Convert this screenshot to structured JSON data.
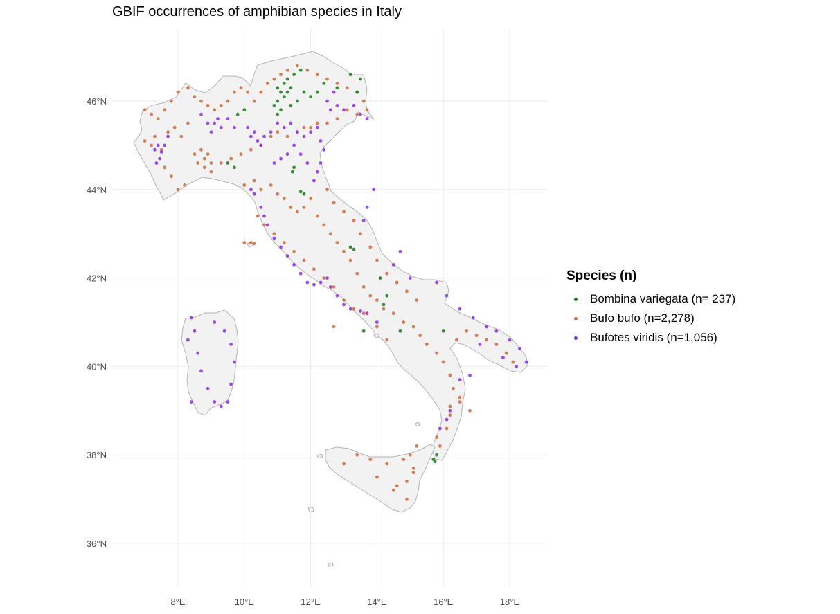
{
  "chart_data": {
    "type": "scatter",
    "title": "GBIF occurrences of amphibian species in Italy",
    "xlabel": "",
    "ylabel": "",
    "xlim": [
      6.0,
      19.1
    ],
    "ylim": [
      35.0,
      47.6
    ],
    "x_ticks": [
      {
        "value": 8,
        "label": "8°E"
      },
      {
        "value": 10,
        "label": "10°E"
      },
      {
        "value": 12,
        "label": "12°E"
      },
      {
        "value": 14,
        "label": "14°E"
      },
      {
        "value": 16,
        "label": "16°E"
      },
      {
        "value": 18,
        "label": "18°E"
      }
    ],
    "y_ticks": [
      {
        "value": 36,
        "label": "36°N"
      },
      {
        "value": 38,
        "label": "38°N"
      },
      {
        "value": 40,
        "label": "40°N"
      },
      {
        "value": 42,
        "label": "42°N"
      },
      {
        "value": 44,
        "label": "44°N"
      },
      {
        "value": 46,
        "label": "46°N"
      }
    ],
    "legend_title": "Species (n)",
    "legend_position": "right",
    "series": [
      {
        "name": "Bombina variegata (n=  237)",
        "color": "#1a7a1a",
        "points": [
          [
            10.9,
            45.9
          ],
          [
            11.0,
            46.0
          ],
          [
            11.1,
            45.8
          ],
          [
            11.2,
            46.1
          ],
          [
            11.3,
            46.2
          ],
          [
            11.0,
            46.3
          ],
          [
            11.2,
            46.4
          ],
          [
            11.4,
            46.3
          ],
          [
            11.3,
            46.5
          ],
          [
            11.5,
            46.6
          ],
          [
            11.7,
            46.7
          ],
          [
            11.1,
            46.2
          ],
          [
            11.6,
            46.0
          ],
          [
            11.8,
            46.2
          ],
          [
            12.0,
            46.1
          ],
          [
            12.2,
            46.2
          ],
          [
            11.4,
            45.9
          ],
          [
            11.0,
            45.7
          ],
          [
            11.5,
            44.5
          ],
          [
            11.45,
            44.4
          ],
          [
            11.8,
            43.9
          ],
          [
            11.7,
            43.95
          ],
          [
            12.4,
            46.4
          ],
          [
            12.8,
            46.3
          ],
          [
            13.5,
            46.5
          ],
          [
            13.2,
            46.6
          ],
          [
            13.4,
            46.2
          ],
          [
            9.8,
            45.7
          ],
          [
            10.0,
            45.8
          ],
          [
            9.5,
            44.6
          ],
          [
            9.7,
            44.5
          ],
          [
            13.2,
            42.7
          ],
          [
            13.3,
            42.65
          ],
          [
            14.1,
            42.0
          ],
          [
            14.3,
            41.6
          ],
          [
            14.2,
            41.4
          ],
          [
            13.6,
            40.8
          ],
          [
            14.7,
            40.8
          ],
          [
            16.0,
            40.8
          ],
          [
            15.8,
            38.0
          ],
          [
            15.7,
            37.9
          ],
          [
            15.75,
            37.85
          ]
        ]
      },
      {
        "name": "Bufo bufo (n=2,278)",
        "color": "#cd6839",
        "points": [
          [
            7.0,
            45.8
          ],
          [
            7.2,
            45.7
          ],
          [
            7.4,
            45.6
          ],
          [
            7.6,
            45.8
          ],
          [
            7.8,
            46.0
          ],
          [
            8.0,
            46.2
          ],
          [
            8.3,
            46.3
          ],
          [
            8.5,
            46.1
          ],
          [
            8.7,
            46.0
          ],
          [
            8.9,
            45.9
          ],
          [
            9.1,
            45.8
          ],
          [
            9.3,
            45.9
          ],
          [
            9.5,
            46.0
          ],
          [
            9.7,
            46.2
          ],
          [
            9.9,
            46.3
          ],
          [
            10.1,
            46.2
          ],
          [
            10.3,
            46.0
          ],
          [
            10.5,
            46.2
          ],
          [
            10.7,
            46.4
          ],
          [
            10.9,
            46.5
          ],
          [
            11.1,
            46.6
          ],
          [
            11.3,
            46.7
          ],
          [
            11.6,
            46.8
          ],
          [
            11.9,
            46.7
          ],
          [
            12.2,
            46.6
          ],
          [
            12.5,
            46.5
          ],
          [
            12.8,
            46.4
          ],
          [
            13.1,
            46.3
          ],
          [
            13.4,
            46.2
          ],
          [
            13.6,
            46.0
          ],
          [
            13.7,
            45.8
          ],
          [
            13.4,
            45.7
          ],
          [
            13.1,
            45.8
          ],
          [
            12.8,
            45.6
          ],
          [
            12.5,
            45.5
          ],
          [
            12.2,
            45.5
          ],
          [
            12.0,
            45.4
          ],
          [
            11.8,
            45.4
          ],
          [
            11.6,
            45.3
          ],
          [
            11.3,
            45.2
          ],
          [
            11.0,
            45.3
          ],
          [
            10.8,
            45.2
          ],
          [
            10.5,
            45.0
          ],
          [
            10.2,
            44.9
          ],
          [
            9.9,
            44.8
          ],
          [
            9.6,
            44.7
          ],
          [
            9.3,
            44.6
          ],
          [
            9.0,
            44.6
          ],
          [
            8.8,
            44.7
          ],
          [
            8.6,
            44.6
          ],
          [
            8.8,
            44.5
          ],
          [
            9.0,
            44.4
          ],
          [
            8.9,
            44.8
          ],
          [
            8.7,
            44.9
          ],
          [
            8.5,
            44.8
          ],
          [
            7.5,
            44.9
          ],
          [
            7.2,
            45.0
          ],
          [
            7.0,
            45.1
          ],
          [
            7.3,
            45.2
          ],
          [
            7.7,
            45.3
          ],
          [
            7.9,
            45.4
          ],
          [
            8.1,
            45.2
          ],
          [
            8.3,
            45.5
          ],
          [
            7.6,
            44.5
          ],
          [
            7.8,
            44.3
          ],
          [
            8.0,
            44.0
          ],
          [
            8.2,
            44.1
          ],
          [
            10.0,
            44.1
          ],
          [
            10.3,
            44.2
          ],
          [
            10.5,
            44.0
          ],
          [
            10.8,
            44.1
          ],
          [
            11.0,
            43.9
          ],
          [
            11.2,
            43.8
          ],
          [
            11.4,
            43.6
          ],
          [
            11.6,
            43.5
          ],
          [
            11.8,
            43.6
          ],
          [
            12.0,
            43.8
          ],
          [
            12.2,
            43.4
          ],
          [
            12.4,
            43.2
          ],
          [
            12.6,
            43.0
          ],
          [
            12.8,
            42.8
          ],
          [
            13.0,
            42.6
          ],
          [
            13.2,
            42.4
          ],
          [
            13.4,
            42.1
          ],
          [
            13.6,
            41.8
          ],
          [
            13.8,
            41.6
          ],
          [
            14.0,
            41.5
          ],
          [
            14.2,
            41.3
          ],
          [
            14.5,
            41.2
          ],
          [
            14.8,
            41.0
          ],
          [
            15.1,
            40.9
          ],
          [
            15.3,
            40.7
          ],
          [
            15.5,
            40.5
          ],
          [
            15.8,
            40.3
          ],
          [
            16.0,
            40.1
          ],
          [
            16.2,
            39.8
          ],
          [
            16.3,
            39.5
          ],
          [
            16.5,
            39.2
          ],
          [
            16.2,
            38.9
          ],
          [
            16.1,
            38.6
          ],
          [
            15.9,
            38.2
          ],
          [
            15.8,
            38.4
          ],
          [
            16.4,
            40.6
          ],
          [
            16.7,
            40.8
          ],
          [
            17.0,
            40.7
          ],
          [
            17.3,
            40.6
          ],
          [
            17.6,
            40.5
          ],
          [
            17.9,
            40.3
          ],
          [
            18.1,
            40.1
          ],
          [
            10.4,
            43.4
          ],
          [
            10.6,
            43.2
          ],
          [
            10.9,
            43.0
          ],
          [
            11.2,
            42.8
          ],
          [
            11.5,
            42.6
          ],
          [
            11.8,
            42.4
          ],
          [
            12.1,
            42.2
          ],
          [
            12.4,
            42.0
          ],
          [
            12.7,
            41.8
          ],
          [
            13.0,
            41.5
          ],
          [
            13.3,
            41.3
          ],
          [
            13.6,
            41.2
          ],
          [
            14.0,
            40.9
          ],
          [
            14.3,
            40.6
          ],
          [
            12.5,
            44.0
          ],
          [
            12.7,
            43.7
          ],
          [
            13.0,
            43.5
          ],
          [
            13.3,
            43.3
          ],
          [
            13.5,
            43.0
          ],
          [
            13.8,
            42.7
          ],
          [
            14.0,
            42.4
          ],
          [
            14.3,
            42.1
          ],
          [
            14.6,
            41.9
          ],
          [
            14.9,
            41.7
          ],
          [
            15.2,
            41.5
          ],
          [
            10.0,
            42.8
          ],
          [
            10.2,
            42.8
          ],
          [
            10.3,
            42.78
          ],
          [
            12.7,
            40.9
          ],
          [
            15.2,
            38.2
          ],
          [
            15.0,
            38.0
          ],
          [
            14.8,
            37.9
          ],
          [
            14.3,
            37.8
          ],
          [
            13.8,
            37.9
          ],
          [
            13.4,
            38.0
          ],
          [
            13.0,
            37.8
          ],
          [
            14.0,
            37.5
          ],
          [
            14.5,
            37.2
          ],
          [
            14.9,
            37.4
          ],
          [
            15.1,
            37.6
          ],
          [
            14.9,
            37.0
          ],
          [
            14.6,
            37.3
          ],
          [
            15.1,
            37.7
          ],
          [
            16.5,
            39.3
          ],
          [
            16.2,
            39.1
          ],
          [
            16.8,
            39.0
          ]
        ]
      },
      {
        "name": "Bufotes viridis (n=1,056)",
        "color": "#8b2be2",
        "points": [
          [
            7.3,
            44.9
          ],
          [
            7.4,
            45.0
          ],
          [
            7.5,
            44.85
          ],
          [
            7.45,
            44.7
          ],
          [
            7.6,
            45.0
          ],
          [
            7.35,
            44.6
          ],
          [
            7.7,
            45.2
          ],
          [
            8.9,
            45.5
          ],
          [
            9.1,
            45.5
          ],
          [
            9.2,
            45.6
          ],
          [
            9.3,
            45.4
          ],
          [
            9.0,
            45.3
          ],
          [
            9.5,
            45.6
          ],
          [
            9.7,
            45.4
          ],
          [
            8.7,
            45.7
          ],
          [
            10.2,
            45.2
          ],
          [
            10.4,
            45.1
          ],
          [
            10.5,
            45.0
          ],
          [
            10.3,
            45.3
          ],
          [
            10.6,
            45.2
          ],
          [
            10.1,
            45.4
          ],
          [
            10.8,
            45.3
          ],
          [
            11.0,
            45.5
          ],
          [
            11.2,
            45.4
          ],
          [
            11.4,
            45.5
          ],
          [
            11.6,
            45.3
          ],
          [
            11.8,
            45.2
          ],
          [
            12.0,
            45.3
          ],
          [
            12.2,
            45.4
          ],
          [
            12.3,
            45.1
          ],
          [
            12.4,
            44.9
          ],
          [
            12.3,
            44.6
          ],
          [
            12.2,
            44.4
          ],
          [
            12.1,
            44.2
          ],
          [
            11.9,
            44.6
          ],
          [
            11.7,
            44.8
          ],
          [
            11.5,
            45.0
          ],
          [
            11.3,
            44.8
          ],
          [
            11.1,
            44.7
          ],
          [
            10.9,
            44.6
          ],
          [
            12.6,
            45.8
          ],
          [
            12.8,
            45.9
          ],
          [
            13.0,
            45.8
          ],
          [
            13.3,
            45.9
          ],
          [
            13.5,
            45.7
          ],
          [
            13.7,
            45.6
          ],
          [
            12.5,
            46.0
          ],
          [
            12.7,
            46.2
          ],
          [
            10.5,
            43.6
          ],
          [
            10.6,
            43.4
          ],
          [
            10.7,
            43.2
          ],
          [
            10.9,
            42.9
          ],
          [
            11.1,
            42.7
          ],
          [
            11.3,
            42.5
          ],
          [
            11.5,
            42.3
          ],
          [
            11.7,
            42.1
          ],
          [
            11.9,
            41.9
          ],
          [
            12.1,
            41.85
          ],
          [
            12.3,
            41.9
          ],
          [
            12.5,
            42.0
          ],
          [
            12.6,
            41.8
          ],
          [
            12.8,
            41.6
          ],
          [
            13.0,
            41.4
          ],
          [
            13.2,
            41.3
          ],
          [
            13.5,
            41.25
          ],
          [
            13.7,
            41.2
          ],
          [
            14.0,
            41.0
          ],
          [
            10.3,
            43.9
          ],
          [
            10.2,
            44.0
          ],
          [
            14.5,
            42.3
          ],
          [
            14.7,
            42.6
          ],
          [
            15.0,
            42.0
          ],
          [
            15.8,
            41.9
          ],
          [
            16.1,
            41.6
          ],
          [
            16.5,
            41.3
          ],
          [
            16.9,
            41.1
          ],
          [
            17.3,
            40.9
          ],
          [
            17.6,
            40.8
          ],
          [
            18.0,
            40.6
          ],
          [
            18.3,
            40.4
          ],
          [
            18.5,
            40.1
          ],
          [
            18.2,
            40.0
          ],
          [
            17.8,
            40.2
          ],
          [
            17.1,
            40.5
          ],
          [
            16.8,
            39.8
          ],
          [
            16.5,
            39.7
          ],
          [
            8.4,
            41.1
          ],
          [
            8.5,
            40.8
          ],
          [
            8.6,
            40.3
          ],
          [
            8.7,
            39.9
          ],
          [
            8.9,
            39.5
          ],
          [
            9.1,
            39.2
          ],
          [
            9.3,
            39.1
          ],
          [
            9.5,
            39.2
          ],
          [
            9.6,
            39.6
          ],
          [
            9.7,
            40.1
          ],
          [
            9.6,
            40.5
          ],
          [
            9.4,
            40.8
          ],
          [
            9.1,
            41.0
          ],
          [
            8.3,
            40.6
          ],
          [
            8.4,
            39.2
          ],
          [
            16.2,
            39.0
          ],
          [
            16.1,
            38.8
          ],
          [
            15.9,
            38.6
          ],
          [
            13.9,
            44.0
          ],
          [
            13.7,
            43.6
          ],
          [
            13.6,
            43.3
          ]
        ]
      }
    ]
  },
  "map": {
    "background_color": "#ffffff",
    "land_fill": "#f2f2f2",
    "land_stroke": "#b3b3b3",
    "grid_color": "#ebebeb"
  }
}
